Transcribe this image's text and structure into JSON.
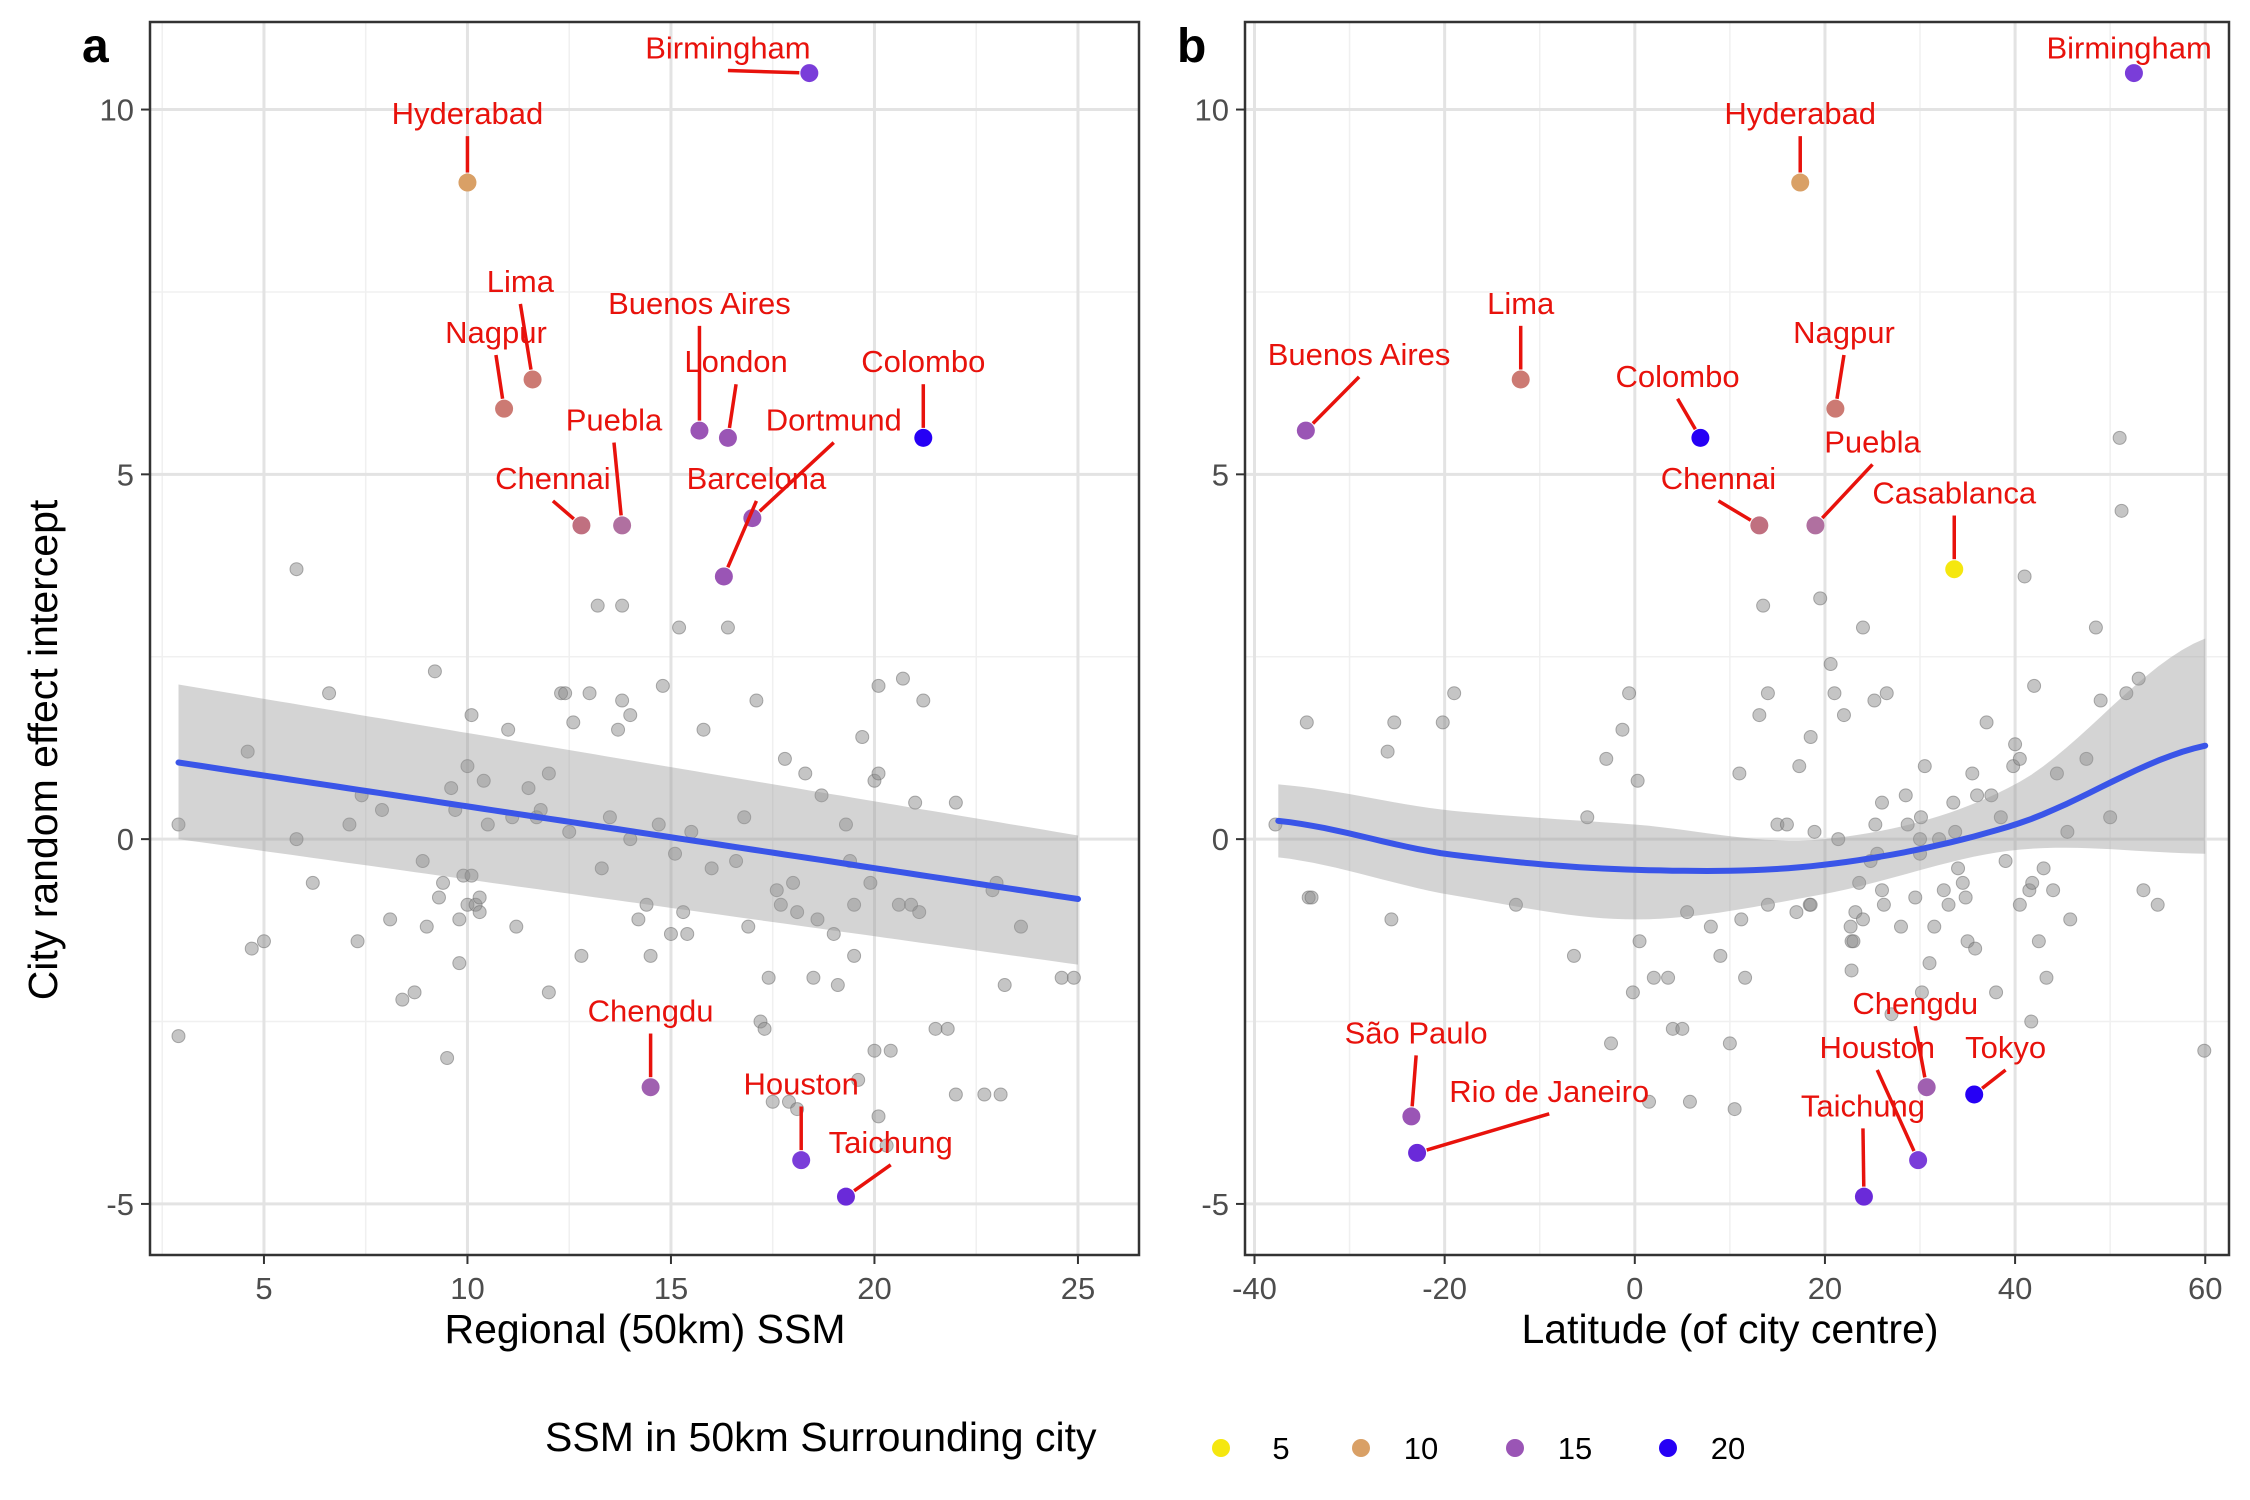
{
  "legend": {
    "title": "SSM in 50km Surrounding city",
    "items": [
      {
        "label": "5",
        "color": "#f5e70f"
      },
      {
        "label": "10",
        "color": "#d9a066"
      },
      {
        "label": "15",
        "color": "#9a55b5"
      },
      {
        "label": "20",
        "color": "#2600f5"
      }
    ]
  },
  "chart_data": [
    {
      "panel": "a",
      "type": "scatter",
      "xlabel": "Regional (50km) SSM",
      "ylabel": "City random effect intercept",
      "xlim": [
        2.2,
        26.5
      ],
      "ylim": [
        -5.7,
        11.2
      ],
      "xticks": [
        5,
        10,
        15,
        20,
        25
      ],
      "yticks": [
        -5,
        0,
        5,
        10
      ],
      "grid": true,
      "trend": {
        "type": "linear",
        "color": "#3a55e8",
        "x": [
          2.9,
          25
        ],
        "y": [
          1.05,
          -0.82
        ],
        "ci_lower": [
          0.0,
          -1.72
        ],
        "ci_upper": [
          2.12,
          0.05
        ]
      },
      "highlighted": [
        {
          "name": "Birmingham",
          "x": 18.4,
          "y": 10.5,
          "color": "#7a3dd9",
          "lx": 16.4,
          "ly": 10.7
        },
        {
          "name": "Hyderabad",
          "x": 10.0,
          "y": 9.0,
          "color": "#d9a066",
          "lx": 10.0,
          "ly": 9.8
        },
        {
          "name": "Lima",
          "x": 11.6,
          "y": 6.3,
          "color": "#cc7a73",
          "lx": 11.3,
          "ly": 7.5
        },
        {
          "name": "Nagpur",
          "x": 10.9,
          "y": 5.9,
          "color": "#cc7a73",
          "lx": 10.7,
          "ly": 6.8
        },
        {
          "name": "Buenos Aires",
          "x": 15.7,
          "y": 5.6,
          "color": "#9a55b5",
          "lx": 15.7,
          "ly": 7.2
        },
        {
          "name": "London",
          "x": 16.4,
          "y": 5.5,
          "color": "#9a55b5",
          "lx": 16.6,
          "ly": 6.4
        },
        {
          "name": "Colombo",
          "x": 21.2,
          "y": 5.5,
          "color": "#2600f5",
          "lx": 21.2,
          "ly": 6.4
        },
        {
          "name": "Dortmund",
          "x": 17.0,
          "y": 4.4,
          "color": "#9a55b5",
          "lx": 19.0,
          "ly": 5.6
        },
        {
          "name": "Puebla",
          "x": 13.8,
          "y": 4.3,
          "color": "#b070a0",
          "lx": 13.6,
          "ly": 5.6
        },
        {
          "name": "Chennai",
          "x": 12.8,
          "y": 4.3,
          "color": "#c07080",
          "lx": 12.1,
          "ly": 4.8
        },
        {
          "name": "Barcelona",
          "x": 16.3,
          "y": 3.6,
          "color": "#9a55b5",
          "lx": 17.1,
          "ly": 4.8
        },
        {
          "name": "Chengdu",
          "x": 14.5,
          "y": -3.4,
          "color": "#a060b0",
          "lx": 14.5,
          "ly": -2.5
        },
        {
          "name": "Houston",
          "x": 18.2,
          "y": -4.4,
          "color": "#7a3dd9",
          "lx": 18.2,
          "ly": -3.5
        },
        {
          "name": "Taichung",
          "x": 19.3,
          "y": -4.9,
          "color": "#6a2ad9",
          "lx": 20.4,
          "ly": -4.3
        }
      ],
      "points": [
        [
          2.9,
          0.2
        ],
        [
          2.9,
          -2.7
        ],
        [
          4.6,
          1.2
        ],
        [
          4.7,
          -1.5
        ],
        [
          5.0,
          -1.4
        ],
        [
          5.8,
          0.0
        ],
        [
          5.8,
          3.7
        ],
        [
          6.2,
          -0.6
        ],
        [
          6.6,
          2.0
        ],
        [
          7.1,
          0.2
        ],
        [
          7.3,
          -1.4
        ],
        [
          7.4,
          0.6
        ],
        [
          7.9,
          0.4
        ],
        [
          8.1,
          -1.1
        ],
        [
          8.4,
          -2.2
        ],
        [
          8.7,
          -2.1
        ],
        [
          8.9,
          -0.3
        ],
        [
          9.0,
          -1.2
        ],
        [
          9.2,
          2.3
        ],
        [
          9.3,
          -0.8
        ],
        [
          9.4,
          -0.6
        ],
        [
          9.5,
          -3.0
        ],
        [
          9.6,
          0.7
        ],
        [
          9.7,
          0.4
        ],
        [
          9.8,
          -1.1
        ],
        [
          9.8,
          -1.7
        ],
        [
          9.9,
          -0.5
        ],
        [
          10.0,
          -0.9
        ],
        [
          10.0,
          1.0
        ],
        [
          10.1,
          1.7
        ],
        [
          10.1,
          -0.5
        ],
        [
          10.2,
          -0.9
        ],
        [
          10.3,
          -0.8
        ],
        [
          10.3,
          -1.0
        ],
        [
          10.4,
          0.8
        ],
        [
          10.5,
          0.2
        ],
        [
          11.0,
          1.5
        ],
        [
          11.1,
          0.3
        ],
        [
          11.2,
          -1.2
        ],
        [
          11.5,
          0.7
        ],
        [
          11.7,
          0.3
        ],
        [
          11.8,
          0.4
        ],
        [
          12.0,
          0.9
        ],
        [
          12.0,
          -2.1
        ],
        [
          12.3,
          2.0
        ],
        [
          12.4,
          2.0
        ],
        [
          12.5,
          0.1
        ],
        [
          12.6,
          1.6
        ],
        [
          12.8,
          -1.6
        ],
        [
          13.0,
          2.0
        ],
        [
          13.2,
          3.2
        ],
        [
          13.3,
          -0.4
        ],
        [
          13.5,
          0.3
        ],
        [
          13.7,
          1.5
        ],
        [
          13.8,
          1.9
        ],
        [
          13.8,
          3.2
        ],
        [
          14.0,
          0.0
        ],
        [
          14.0,
          1.7
        ],
        [
          14.2,
          -1.1
        ],
        [
          14.4,
          -0.9
        ],
        [
          14.5,
          -1.6
        ],
        [
          14.7,
          0.2
        ],
        [
          14.8,
          2.1
        ],
        [
          15.0,
          -1.3
        ],
        [
          15.1,
          -0.2
        ],
        [
          15.2,
          2.9
        ],
        [
          15.3,
          -1.0
        ],
        [
          15.4,
          -1.3
        ],
        [
          15.5,
          0.1
        ],
        [
          15.8,
          1.5
        ],
        [
          16.0,
          -0.4
        ],
        [
          16.4,
          2.9
        ],
        [
          16.6,
          -0.3
        ],
        [
          16.8,
          0.3
        ],
        [
          16.9,
          -1.2
        ],
        [
          17.1,
          1.9
        ],
        [
          17.2,
          -2.5
        ],
        [
          17.3,
          -2.6
        ],
        [
          17.4,
          -1.9
        ],
        [
          17.5,
          -3.6
        ],
        [
          17.6,
          -0.7
        ],
        [
          17.7,
          -0.9
        ],
        [
          17.8,
          1.1
        ],
        [
          17.9,
          -3.6
        ],
        [
          18.0,
          -0.6
        ],
        [
          18.1,
          -1.0
        ],
        [
          18.1,
          -3.7
        ],
        [
          18.3,
          0.9
        ],
        [
          18.5,
          -1.9
        ],
        [
          18.6,
          -1.1
        ],
        [
          18.7,
          0.6
        ],
        [
          19.0,
          -1.3
        ],
        [
          19.1,
          -2.0
        ],
        [
          19.3,
          0.2
        ],
        [
          19.4,
          -0.3
        ],
        [
          19.5,
          -1.6
        ],
        [
          19.5,
          -0.9
        ],
        [
          19.6,
          -3.3
        ],
        [
          19.7,
          1.4
        ],
        [
          19.9,
          -0.6
        ],
        [
          20.0,
          0.8
        ],
        [
          20.0,
          -2.9
        ],
        [
          20.1,
          0.9
        ],
        [
          20.1,
          2.1
        ],
        [
          20.1,
          -3.8
        ],
        [
          20.3,
          -4.2
        ],
        [
          20.4,
          -2.9
        ],
        [
          20.6,
          -0.9
        ],
        [
          20.7,
          2.2
        ],
        [
          20.9,
          -0.9
        ],
        [
          21.0,
          0.5
        ],
        [
          21.1,
          -1.0
        ],
        [
          21.2,
          1.9
        ],
        [
          21.5,
          -2.6
        ],
        [
          21.8,
          -2.6
        ],
        [
          22.0,
          0.5
        ],
        [
          22.0,
          -3.5
        ],
        [
          22.7,
          -3.5
        ],
        [
          22.9,
          -0.7
        ],
        [
          23.0,
          -0.6
        ],
        [
          23.1,
          -3.5
        ],
        [
          23.2,
          -2.0
        ],
        [
          23.6,
          -1.2
        ],
        [
          24.6,
          -1.9
        ],
        [
          24.9,
          -1.9
        ]
      ]
    },
    {
      "panel": "b",
      "type": "scatter",
      "xlabel": "Latitude (of city centre)",
      "ylabel": "",
      "xlim": [
        -41,
        62.5
      ],
      "ylim": [
        -5.7,
        11.2
      ],
      "xticks": [
        -40,
        -20,
        0,
        20,
        40,
        60
      ],
      "yticks": [
        -5,
        0,
        5,
        10
      ],
      "grid": true,
      "trend": {
        "type": "quadratic",
        "color": "#3a55e8",
        "x": [
          -37.5,
          -20,
          0,
          20,
          40,
          60
        ],
        "y": [
          0.25,
          -0.2,
          -0.42,
          -0.35,
          0.2,
          1.28
        ],
        "ci_lower": [
          -0.25,
          -0.75,
          -1.1,
          -0.75,
          -0.15,
          -0.2
        ],
        "ci_upper": [
          0.75,
          0.4,
          0.2,
          0.0,
          0.75,
          2.75
        ]
      },
      "highlighted": [
        {
          "name": "Birmingham",
          "x": 52.5,
          "y": 10.5,
          "color": "#7a3dd9",
          "lx": 52.0,
          "ly": 10.7
        },
        {
          "name": "Hyderabad",
          "x": 17.4,
          "y": 9.0,
          "color": "#d9a066",
          "lx": 17.4,
          "ly": 9.8
        },
        {
          "name": "Lima",
          "x": -12.0,
          "y": 6.3,
          "color": "#cc7a73",
          "lx": -12.0,
          "ly": 7.2
        },
        {
          "name": "Buenos Aires",
          "x": -34.6,
          "y": 5.6,
          "color": "#9a55b5",
          "lx": -29.0,
          "ly": 6.5
        },
        {
          "name": "Nagpur",
          "x": 21.1,
          "y": 5.9,
          "color": "#cc7a73",
          "lx": 22.0,
          "ly": 6.8
        },
        {
          "name": "Colombo",
          "x": 6.9,
          "y": 5.5,
          "color": "#2600f5",
          "lx": 4.5,
          "ly": 6.2
        },
        {
          "name": "Chennai",
          "x": 13.1,
          "y": 4.3,
          "color": "#c07080",
          "lx": 8.8,
          "ly": 4.8
        },
        {
          "name": "Puebla",
          "x": 19.0,
          "y": 4.3,
          "color": "#b070a0",
          "lx": 25.0,
          "ly": 5.3
        },
        {
          "name": "Casablanca",
          "x": 33.6,
          "y": 3.7,
          "color": "#f5e70f",
          "lx": 33.6,
          "ly": 4.6
        },
        {
          "name": "Chengdu",
          "x": 30.7,
          "y": -3.4,
          "color": "#a060b0",
          "lx": 29.5,
          "ly": -2.4
        },
        {
          "name": "São Paulo",
          "x": -23.5,
          "y": -3.8,
          "color": "#9a55b5",
          "lx": -23.0,
          "ly": -2.8
        },
        {
          "name": "Rio de Janeiro",
          "x": -22.9,
          "y": -4.3,
          "color": "#6a2ad9",
          "lx": -9.0,
          "ly": -3.6
        },
        {
          "name": "Houston",
          "x": 29.8,
          "y": -4.4,
          "color": "#7a3dd9",
          "lx": 25.5,
          "ly": -3.0
        },
        {
          "name": "Tokyo",
          "x": 35.7,
          "y": -3.5,
          "color": "#2600f5",
          "lx": 39.0,
          "ly": -3.0
        },
        {
          "name": "Taichung",
          "x": 24.1,
          "y": -4.9,
          "color": "#6a2ad9",
          "lx": 24.0,
          "ly": -3.8
        }
      ],
      "points": [
        [
          -37.8,
          0.2
        ],
        [
          -34.5,
          1.6
        ],
        [
          -34.3,
          -0.8
        ],
        [
          -34.0,
          -0.8
        ],
        [
          -26.0,
          1.2
        ],
        [
          -25.3,
          1.6
        ],
        [
          -25.6,
          -1.1
        ],
        [
          -20.2,
          1.6
        ],
        [
          -19.0,
          2.0
        ],
        [
          -12.5,
          -0.9
        ],
        [
          -6.4,
          -1.6
        ],
        [
          -5.0,
          0.3
        ],
        [
          -3.0,
          1.1
        ],
        [
          -2.5,
          -2.8
        ],
        [
          -1.3,
          1.5
        ],
        [
          -0.6,
          2.0
        ],
        [
          -0.2,
          -2.1
        ],
        [
          0.3,
          0.8
        ],
        [
          0.5,
          -1.4
        ],
        [
          1.5,
          -3.6
        ],
        [
          2.0,
          -1.9
        ],
        [
          3.5,
          -1.9
        ],
        [
          4.0,
          -2.6
        ],
        [
          5.0,
          -2.6
        ],
        [
          5.5,
          -1.0
        ],
        [
          5.8,
          -3.6
        ],
        [
          8.0,
          -1.2
        ],
        [
          9.0,
          -1.6
        ],
        [
          10.0,
          -2.8
        ],
        [
          10.5,
          -3.7
        ],
        [
          11.0,
          0.9
        ],
        [
          11.2,
          -1.1
        ],
        [
          11.6,
          -1.9
        ],
        [
          13.1,
          1.7
        ],
        [
          13.5,
          3.2
        ],
        [
          14.0,
          2.0
        ],
        [
          14.0,
          -0.9
        ],
        [
          15.0,
          0.2
        ],
        [
          16.0,
          0.2
        ],
        [
          17.0,
          -1.0
        ],
        [
          17.3,
          1.0
        ],
        [
          18.4,
          -0.9
        ],
        [
          18.5,
          -0.9
        ],
        [
          18.5,
          1.4
        ],
        [
          18.9,
          0.1
        ],
        [
          19.5,
          3.3
        ],
        [
          20.6,
          2.4
        ],
        [
          21.0,
          2.0
        ],
        [
          21.4,
          0.0
        ],
        [
          22.0,
          1.7
        ],
        [
          22.7,
          -1.2
        ],
        [
          22.8,
          -1.4
        ],
        [
          22.8,
          -1.8
        ],
        [
          23.0,
          -1.4
        ],
        [
          23.2,
          -1.0
        ],
        [
          23.6,
          -0.6
        ],
        [
          24.0,
          -1.1
        ],
        [
          24.0,
          2.9
        ],
        [
          24.8,
          -0.3
        ],
        [
          25.2,
          1.9
        ],
        [
          25.5,
          -0.2
        ],
        [
          25.3,
          0.2
        ],
        [
          26.0,
          -0.7
        ],
        [
          26.0,
          0.5
        ],
        [
          26.2,
          -0.9
        ],
        [
          26.5,
          2.0
        ],
        [
          27.0,
          -2.4
        ],
        [
          28.0,
          -1.2
        ],
        [
          28.5,
          0.6
        ],
        [
          28.7,
          0.2
        ],
        [
          29.5,
          -0.8
        ],
        [
          30.0,
          0.0
        ],
        [
          30.0,
          -0.2
        ],
        [
          30.1,
          0.3
        ],
        [
          30.2,
          -2.1
        ],
        [
          30.5,
          1.0
        ],
        [
          31.0,
          -1.7
        ],
        [
          31.5,
          -1.2
        ],
        [
          32.0,
          0.0
        ],
        [
          32.5,
          -0.7
        ],
        [
          33.0,
          -0.9
        ],
        [
          33.5,
          0.5
        ],
        [
          33.7,
          0.1
        ],
        [
          34.0,
          -0.4
        ],
        [
          34.5,
          -0.6
        ],
        [
          34.8,
          -0.8
        ],
        [
          35.0,
          -1.4
        ],
        [
          35.5,
          0.9
        ],
        [
          35.8,
          -1.5
        ],
        [
          36.0,
          0.6
        ],
        [
          37.0,
          1.6
        ],
        [
          37.5,
          0.6
        ],
        [
          38.0,
          -2.1
        ],
        [
          38.5,
          0.3
        ],
        [
          39.0,
          -0.3
        ],
        [
          39.8,
          1.0
        ],
        [
          40.0,
          1.3
        ],
        [
          40.5,
          -0.9
        ],
        [
          40.5,
          1.1
        ],
        [
          41.0,
          3.6
        ],
        [
          41.5,
          -0.7
        ],
        [
          41.7,
          -2.5
        ],
        [
          41.8,
          -0.6
        ],
        [
          42.0,
          2.1
        ],
        [
          42.5,
          -1.4
        ],
        [
          43.0,
          -0.4
        ],
        [
          43.3,
          -1.9
        ],
        [
          44.0,
          -0.7
        ],
        [
          44.4,
          0.9
        ],
        [
          45.5,
          0.1
        ],
        [
          45.8,
          -1.1
        ],
        [
          47.5,
          1.1
        ],
        [
          48.5,
          2.9
        ],
        [
          49.0,
          1.9
        ],
        [
          50.0,
          0.3
        ],
        [
          51.0,
          5.5
        ],
        [
          51.2,
          4.5
        ],
        [
          51.7,
          2.0
        ],
        [
          53.0,
          2.2
        ],
        [
          53.5,
          -0.7
        ],
        [
          55.0,
          -0.9
        ],
        [
          59.9,
          -2.9
        ]
      ]
    }
  ]
}
